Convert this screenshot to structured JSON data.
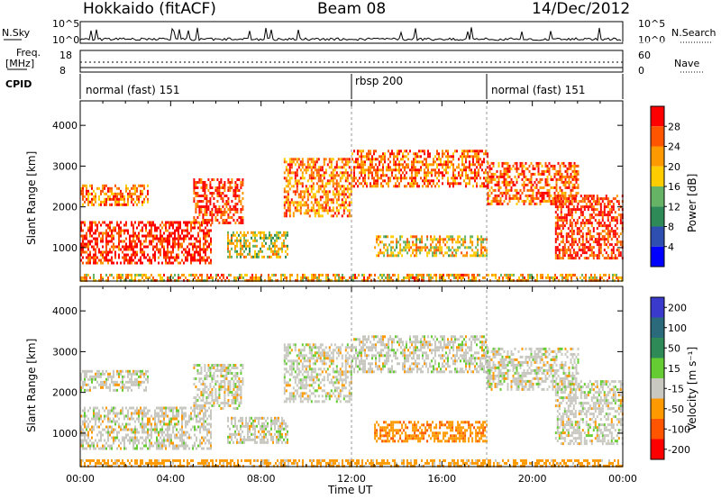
{
  "header": {
    "site_title": "Hokkaido (fitACF)",
    "beam": "Beam 08",
    "date": "14/Dec/2012"
  },
  "top_panels": {
    "nsky_label": "N.Sky",
    "nsearch_label": "N.Search",
    "nsky_ticks": [
      "10^5",
      "10^0"
    ],
    "nsearch_ticks": [
      "10^5",
      "10^0"
    ],
    "freq_label_1": "Freq.",
    "freq_label_2": "[MHz]",
    "freq_ticks": [
      "18",
      "8"
    ],
    "nave_label": "Nave",
    "nave_ticks": [
      "60",
      "0"
    ],
    "cpid_label": "CPID",
    "cpid_segments": [
      {
        "label": "normal (fast) 151",
        "start_hour": 0,
        "end_hour": 12
      },
      {
        "label": "rbsp 200",
        "start_hour": 12,
        "end_hour": 18
      },
      {
        "label": "normal (fast) 151",
        "start_hour": 18,
        "end_hour": 24
      }
    ]
  },
  "chart_data": [
    {
      "type": "heatmap",
      "title": "",
      "xlabel": "Time UT",
      "ylabel": "Slant Range [km]",
      "x_ticks": [
        "00:00",
        "04:00",
        "08:00",
        "12:00",
        "16:00",
        "20:00",
        "00:00"
      ],
      "y_ticks": [
        "1000",
        "2000",
        "3000",
        "4000"
      ],
      "xlim_hours": [
        0,
        24
      ],
      "ylim_km": [
        180,
        4600
      ],
      "colorbar": {
        "label": "Power [dB]",
        "ticks": [
          "4",
          "8",
          "12",
          "16",
          "20",
          "24",
          "28"
        ],
        "range": [
          0,
          30
        ],
        "colors": [
          "#0000ff",
          "#2f4fb0",
          "#2e8b57",
          "#66b366",
          "#ffcc00",
          "#ff9900",
          "#ff5500",
          "#ff0000"
        ]
      },
      "echo_regions": [
        {
          "t0": 0.0,
          "t1": 5.8,
          "r0": 650,
          "r1": 1650,
          "power": 28
        },
        {
          "t0": 0.0,
          "t1": 3.0,
          "r0": 2050,
          "r1": 2550,
          "power": 22
        },
        {
          "t0": 5.0,
          "t1": 7.2,
          "r0": 1600,
          "r1": 2700,
          "power": 27
        },
        {
          "t0": 6.5,
          "t1": 9.2,
          "r0": 750,
          "r1": 1400,
          "power": 16
        },
        {
          "t0": 9.0,
          "t1": 12.0,
          "r0": 1800,
          "r1": 3200,
          "power": 22
        },
        {
          "t0": 12.0,
          "t1": 18.0,
          "r0": 2500,
          "r1": 3400,
          "power": 24
        },
        {
          "t0": 13.0,
          "t1": 18.0,
          "r0": 800,
          "r1": 1300,
          "power": 18
        },
        {
          "t0": 18.0,
          "t1": 22.0,
          "r0": 2100,
          "r1": 3100,
          "power": 24
        },
        {
          "t0": 21.0,
          "t1": 24.0,
          "r0": 750,
          "r1": 2300,
          "power": 27
        },
        {
          "t0": 0.0,
          "t1": 24.0,
          "r0": 180,
          "r1": 360,
          "power": 20
        }
      ]
    },
    {
      "type": "heatmap",
      "title": "",
      "xlabel": "Time UT",
      "ylabel": "Slant Range [km]",
      "x_ticks": [
        "00:00",
        "04:00",
        "08:00",
        "12:00",
        "16:00",
        "20:00",
        "00:00"
      ],
      "y_ticks": [
        "1000",
        "2000",
        "3000",
        "4000"
      ],
      "xlim_hours": [
        0,
        24
      ],
      "ylim_km": [
        180,
        4600
      ],
      "colorbar": {
        "label": "Velocity [m s⁻¹]",
        "ticks": [
          "200",
          "100",
          "50",
          "15",
          "-15",
          "-50",
          "-100",
          "-200"
        ],
        "colors": [
          "#3a3acc",
          "#2a6a7a",
          "#2e8b57",
          "#66cc33",
          "#c8c8c0",
          "#ff9900",
          "#ff5500",
          "#ff0000"
        ]
      },
      "echo_regions": [
        {
          "t0": 0.0,
          "t1": 5.8,
          "r0": 650,
          "r1": 1650,
          "velocity": 0
        },
        {
          "t0": 0.0,
          "t1": 3.0,
          "r0": 2050,
          "r1": 2550,
          "velocity": 0
        },
        {
          "t0": 5.0,
          "t1": 7.2,
          "r0": 1600,
          "r1": 2700,
          "velocity": 0
        },
        {
          "t0": 6.5,
          "t1": 9.2,
          "r0": 750,
          "r1": 1400,
          "velocity": 0
        },
        {
          "t0": 9.0,
          "t1": 12.0,
          "r0": 1800,
          "r1": 3200,
          "velocity": 0
        },
        {
          "t0": 12.0,
          "t1": 18.0,
          "r0": 2500,
          "r1": 3400,
          "velocity": 0
        },
        {
          "t0": 13.0,
          "t1": 18.0,
          "r0": 800,
          "r1": 1300,
          "velocity": -40
        },
        {
          "t0": 18.0,
          "t1": 22.0,
          "r0": 2100,
          "r1": 3100,
          "velocity": 0
        },
        {
          "t0": 21.0,
          "t1": 24.0,
          "r0": 750,
          "r1": 2300,
          "velocity": 0
        },
        {
          "t0": 0.0,
          "t1": 24.0,
          "r0": 180,
          "r1": 360,
          "velocity": -30
        }
      ]
    }
  ]
}
